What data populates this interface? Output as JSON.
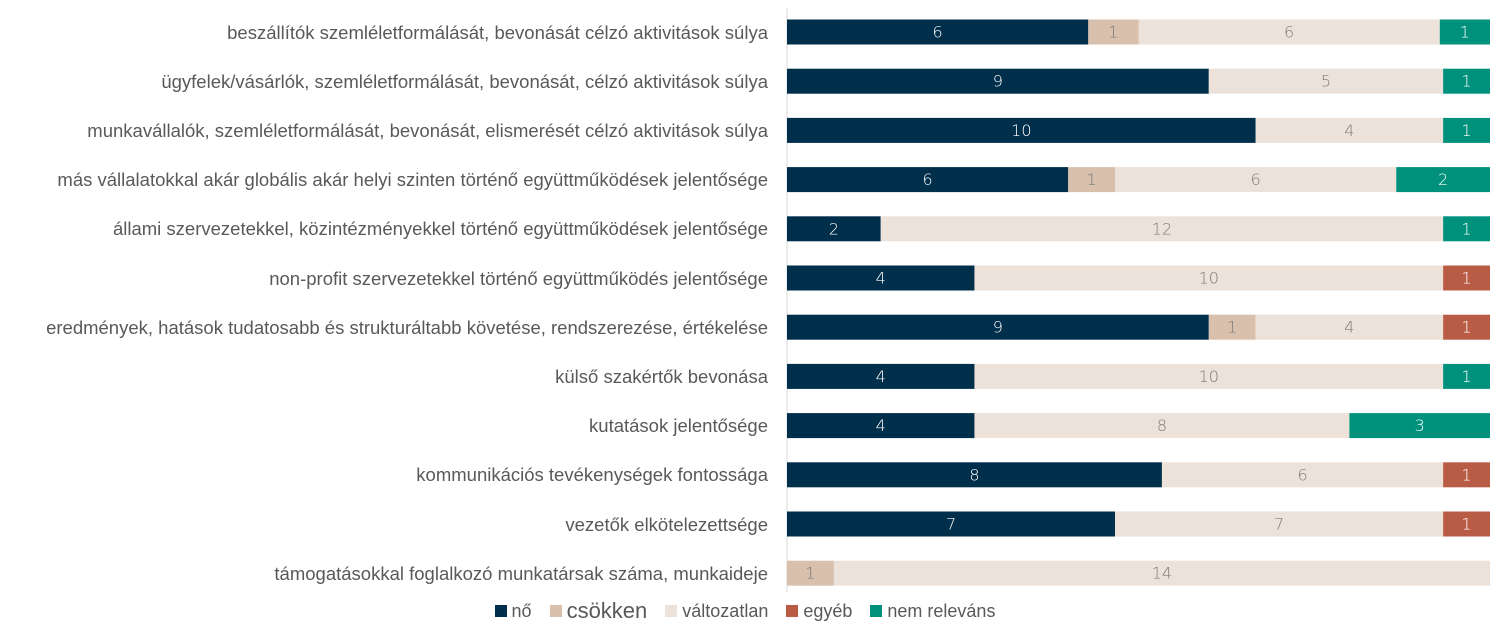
{
  "chart_data": {
    "type": "bar",
    "orientation": "horizontal",
    "stacking": "percent",
    "categories": [
      "beszállítók szemléletformálását, bevonását célzó aktivitások súlya",
      "ügyfelek/vásárlók, szemléletformálását, bevonását, célzó aktivitások súlya",
      "munkavállalók, szemléletformálását, bevonását, elismerését célzó aktivitások súlya",
      "más vállalatokkal akár globális akár helyi szinten történő együttműködések jelentősége",
      "állami szervezetekkel, közintézményekkel történő együttműködések jelentősége",
      "non-profit szervezetekkel történő együttműködés jelentősége",
      "eredmények, hatások tudatosabb és strukturáltabb követése, rendszerezése, értékelése",
      "külső szakértők bevonása",
      "kutatások jelentősége",
      "kommunikációs tevékenységek fontossága",
      "vezetők elkötelezettsége",
      "támogatásokkal foglalkozó munkatársak száma, munkaideje"
    ],
    "series": [
      {
        "name": "nő",
        "color": "#002f4b",
        "label_color": "#ffffff",
        "values": [
          6,
          9,
          10,
          6,
          2,
          4,
          9,
          4,
          4,
          8,
          7,
          null
        ]
      },
      {
        "name": "csökken",
        "color": "#d8c0ad",
        "label_color": "#7a7a7a",
        "values": [
          1,
          null,
          null,
          1,
          null,
          null,
          1,
          null,
          null,
          null,
          null,
          1
        ]
      },
      {
        "name": "változatlan",
        "color": "#ede2d9",
        "label_color": "#7a7a7a",
        "values": [
          6,
          5,
          4,
          6,
          12,
          10,
          4,
          10,
          8,
          6,
          7,
          14
        ]
      },
      {
        "name": "egyéb",
        "color": "#b95c45",
        "label_color": "#ffffff",
        "values": [
          null,
          null,
          null,
          null,
          null,
          1,
          1,
          null,
          null,
          1,
          1,
          null
        ]
      },
      {
        "name": "nem releváns",
        "color": "#00917d",
        "label_color": "#ffffff",
        "values": [
          1,
          1,
          1,
          2,
          1,
          null,
          null,
          1,
          3,
          null,
          null,
          null
        ]
      }
    ],
    "legend": "bottom"
  }
}
